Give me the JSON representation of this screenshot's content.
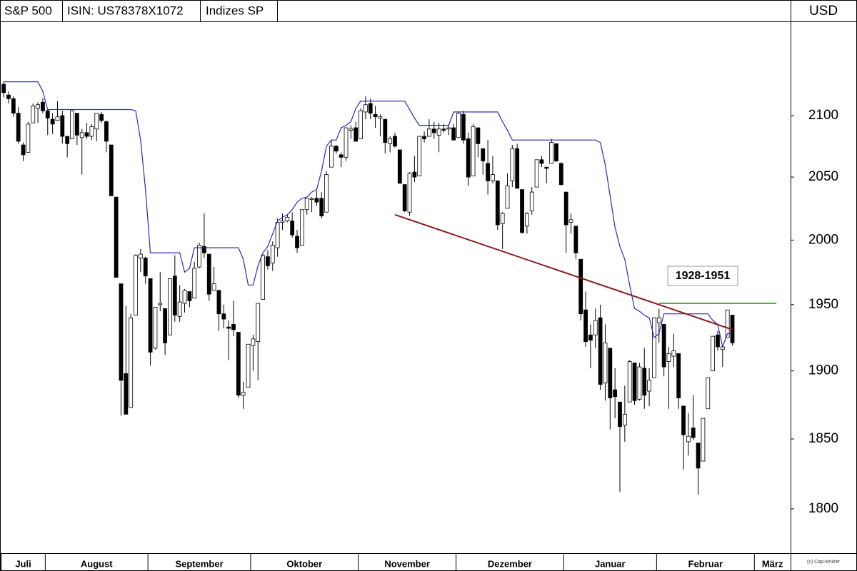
{
  "header": {
    "symbol": "S&P 500",
    "isin": "ISIN: US78378X1072",
    "exchange": "Indizes SP",
    "currency": "USD"
  },
  "copyright": "(c) Cap-timizer",
  "chart_data": {
    "type": "candlestick",
    "log_scale": true,
    "grid": false,
    "ylim": [
      1769,
      2179
    ],
    "yticks": [
      1800,
      1850,
      1900,
      1950,
      2000,
      2050,
      2100
    ],
    "xlim": [
      -0.75,
      160.9
    ],
    "xticks": [
      {
        "value": 0,
        "label": "Juli"
      },
      {
        "value": 9,
        "label": "August"
      },
      {
        "value": 30,
        "label": "September"
      },
      {
        "value": 51,
        "label": "Oktober"
      },
      {
        "value": 73,
        "label": "November"
      },
      {
        "value": 93,
        "label": "Dezember"
      },
      {
        "value": 115,
        "label": "Januar"
      },
      {
        "value": 134,
        "label": "Februar"
      },
      {
        "value": 154,
        "label": "März"
      }
    ],
    "up_color": "#ffffff",
    "down_color": "#000000",
    "open": [
      2126,
      2117,
      2114,
      2102,
      2076,
      2070,
      2094,
      2106,
      2111,
      2104,
      2097,
      2096,
      2100,
      2083,
      2081,
      2102,
      2082,
      2086,
      2083,
      2089,
      2101,
      2095,
      2076,
      2034,
      1966,
      1898,
      1873,
      1942,
      1986,
      1986,
      1970,
      1917,
      1950,
      1947,
      1927,
      1972,
      1941,
      1951,
      1960,
      1955,
      1979,
      1995,
      1989,
      1961,
      1961,
      1943,
      1933,
      1935,
      1929,
      1882,
      1888,
      1919,
      1922,
      1954,
      1987,
      1982,
      1994,
      2014,
      2015,
      2015,
      2003,
      1996,
      2024,
      2032,
      2033,
      2033,
      2022,
      2058,
      2075,
      2068,
      2066,
      2088,
      2090,
      2081,
      2103,
      2110,
      2101,
      2098,
      2097,
      2077,
      2083,
      2072,
      2044,
      2022,
      2054,
      2051,
      2083,
      2083,
      2089,
      2084,
      2089,
      2089,
      2090,
      2082,
      2101,
      2081,
      2051,
      2090,
      2073,
      2061,
      2047,
      2047,
      2013,
      2025,
      2047,
      2073,
      2040,
      2011,
      2023,
      2042,
      2064,
      2058,
      2061,
      2077,
      2061,
      2038,
      2014,
      2011,
      1985,
      1946,
      1927,
      1927,
      1940,
      1891,
      1917,
      1886,
      1877,
      1860,
      1877,
      1906,
      1879,
      1902,
      1885,
      1895,
      1936,
      1935,
      1907,
      1911,
      1913,
      1874,
      1848,
      1858,
      1847,
      1834,
      1872,
      1900,
      1927,
      1916,
      1925,
      1942
    ],
    "high": [
      2128,
      2120,
      2116,
      2107,
      2078,
      2095,
      2110,
      2111,
      2114,
      2105,
      2102,
      2112,
      2104,
      2083,
      2105,
      2102,
      2089,
      2094,
      2093,
      2102,
      2103,
      2096,
      2076,
      2034,
      1966,
      1949,
      1943,
      1989,
      1993,
      1987,
      1970,
      1948,
      1975,
      1947,
      1970,
      1988,
      1965,
      1962,
      1960,
      1983,
      1998,
      2021,
      1989,
      1979,
      1961,
      1950,
      1938,
      1953,
      1929,
      1892,
      1920,
      1927,
      1951,
      1989,
      1992,
      1999,
      2017,
      2021,
      2020,
      2022,
      2008,
      2024,
      2033,
      2034,
      2039,
      2038,
      2055,
      2080,
      2076,
      2070,
      2090,
      2092,
      2095,
      2106,
      2116,
      2114,
      2108,
      2101,
      2097,
      2083,
      2086,
      2072,
      2044,
      2054,
      2067,
      2083,
      2087,
      2097,
      2095,
      2094,
      2093,
      2093,
      2093,
      2103,
      2104,
      2086,
      2093,
      2090,
      2073,
      2080,
      2067,
      2047,
      2022,
      2053,
      2076,
      2077,
      2040,
      2022,
      2042,
      2064,
      2067,
      2058,
      2081,
      2077,
      2062,
      2038,
      2021,
      2011,
      1985,
      1960,
      1935,
      1947,
      1950,
      1935,
      1917,
      1902,
      1877,
      1889,
      1908,
      1906,
      1906,
      1917,
      1902,
      1940,
      1947,
      1935,
      1918,
      1928,
      1913,
      1874,
      1869,
      1882,
      1847,
      1865,
      1895,
      1926,
      1930,
      1919,
      1946,
      1942
    ],
    "low": [
      2115,
      2110,
      2099,
      2077,
      2063,
      2070,
      2094,
      2094,
      2102,
      2084,
      2085,
      2096,
      2077,
      2066,
      2081,
      2076,
      2052,
      2081,
      2080,
      2079,
      2094,
      2070,
      2035,
      1971,
      1867,
      1868,
      1873,
      1942,
      1975,
      1966,
      1904,
      1916,
      1945,
      1912,
      1927,
      1937,
      1937,
      1944,
      1948,
      1955,
      1978,
      1986,
      1953,
      1961,
      1930,
      1932,
      1908,
      1926,
      1880,
      1872,
      1888,
      1900,
      1893,
      1954,
      1977,
      1976,
      1987,
      2008,
      2014,
      2002,
      1990,
      1996,
      2020,
      2022,
      2027,
      2017,
      2022,
      2058,
      2069,
      2058,
      2063,
      2081,
      2079,
      2081,
      2097,
      2097,
      2090,
      2083,
      2069,
      2070,
      2074,
      2045,
      2022,
      2019,
      2046,
      2051,
      2078,
      2083,
      2081,
      2070,
      2086,
      2084,
      2080,
      2082,
      2077,
      2043,
      2051,
      2066,
      2052,
      2036,
      2045,
      2008,
      1993,
      2025,
      2042,
      2041,
      2005,
      2005,
      2020,
      2042,
      2058,
      2045,
      2061,
      2062,
      2043,
      1990,
      2005,
      1985,
      1938,
      1918,
      1902,
      1917,
      1886,
      1878,
      1857,
      1865,
      1812,
      1848,
      1877,
      1875,
      1878,
      1872,
      1874,
      1895,
      1921,
      1896,
      1872,
      1903,
      1872,
      1828,
      1838,
      1849,
      1810,
      1834,
      1872,
      1900,
      1915,
      1903,
      1925,
      1919
    ],
    "close": [
      2119,
      2114,
      2102,
      2079,
      2068,
      2093,
      2108,
      2109,
      2104,
      2098,
      2093,
      2099,
      2083,
      2077,
      2104,
      2084,
      2086,
      2083,
      2091,
      2102,
      2096,
      2079,
      2035,
      1971,
      1893,
      1868,
      1940,
      1988,
      1989,
      1972,
      1914,
      1948,
      1951,
      1921,
      1970,
      1942,
      1952,
      1961,
      1953,
      1978,
      1996,
      1990,
      1958,
      1966,
      1943,
      1939,
      1932,
      1931,
      1882,
      1884,
      1920,
      1924,
      1951,
      1988,
      1980,
      1996,
      2014,
      2015,
      2018,
      2004,
      1994,
      2024,
      2033,
      2033,
      2030,
      2019,
      2052,
      2075,
      2071,
      2066,
      2090,
      2089,
      2079,
      2104,
      2109,
      2102,
      2099,
      2099,
      2078,
      2081,
      2075,
      2045,
      2023,
      2053,
      2050,
      2083,
      2081,
      2089,
      2086,
      2089,
      2088,
      2090,
      2080,
      2102,
      2080,
      2050,
      2091,
      2077,
      2063,
      2047,
      2052,
      2012,
      2021,
      2043,
      2073,
      2041,
      2006,
      2021,
      2038,
      2064,
      2061,
      2057,
      2078,
      2063,
      2044,
      2012,
      2016,
      1990,
      1943,
      1922,
      1923,
      1938,
      1890,
      1921,
      1880,
      1881,
      1859,
      1868,
      1907,
      1878,
      1903,
      1882,
      1893,
      1940,
      1940,
      1903,
      1913,
      1915,
      1880,
      1853,
      1852,
      1851,
      1829,
      1865,
      1895,
      1926,
      1918,
      1918,
      1946,
      1921
    ],
    "indicator": {
      "color": "#2a2ab8",
      "values": [
        2128,
        2128,
        2128,
        2128,
        2128,
        2128,
        2128,
        2128,
        2120,
        2105,
        2105,
        2105,
        2105,
        2105,
        2105,
        2105,
        2105,
        2105,
        2105,
        2105,
        2105,
        2105,
        2105,
        2105,
        2105,
        2105,
        2105,
        2104,
        2080,
        2040,
        1990,
        1990,
        1990,
        1990,
        1990,
        1990,
        1990,
        1975,
        1978,
        1994,
        1994,
        1994,
        1994,
        1994,
        1994,
        1994,
        1994,
        1994,
        1994,
        1985,
        1965,
        1965,
        1980,
        1990,
        1995,
        2005,
        2015,
        2018,
        2020,
        2024,
        2030,
        2033,
        2034,
        2038,
        2040,
        2055,
        2075,
        2080,
        2080,
        2090,
        2092,
        2095,
        2106,
        2112,
        2112,
        2112,
        2112,
        2112,
        2112,
        2112,
        2112,
        2112,
        2112,
        2105,
        2098,
        2092,
        2092,
        2092,
        2092,
        2092,
        2092,
        2092,
        2103,
        2103,
        2103,
        2103,
        2103,
        2103,
        2103,
        2103,
        2103,
        2103,
        2095,
        2088,
        2080,
        2080,
        2080,
        2080,
        2080,
        2080,
        2080,
        2080,
        2080,
        2080,
        2080,
        2080,
        2080,
        2080,
        2080,
        2080,
        2080,
        2080,
        2078,
        2060,
        2035,
        2010,
        1995,
        1985,
        1965,
        1947,
        1945,
        1942,
        1940,
        1925,
        1928,
        1943,
        1943,
        1943,
        1943,
        1943,
        1943,
        1943,
        1943,
        1943,
        1943,
        1938,
        1935,
        1918,
        1928,
        1928
      ]
    },
    "trendline": {
      "color": "#8b1a1a",
      "x": [
        80,
        149
      ],
      "values": [
        2020,
        1931
      ]
    },
    "level": {
      "color": "#1f8c1f",
      "x": [
        134,
        158
      ],
      "values": [
        1951,
        1951
      ]
    },
    "annotation": "1928-1951"
  }
}
